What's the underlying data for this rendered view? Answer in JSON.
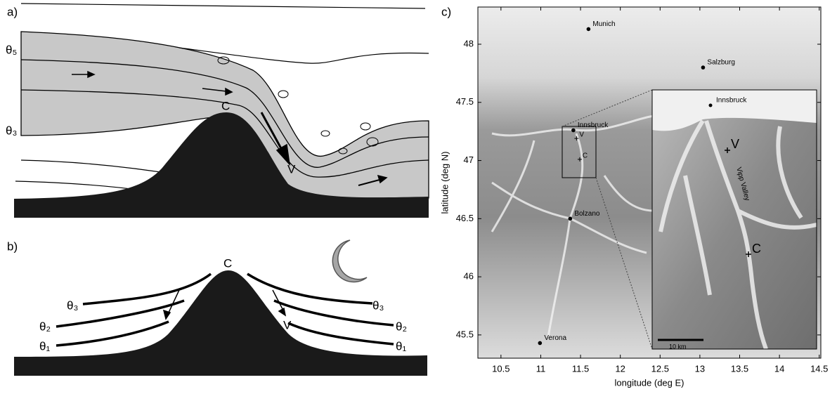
{
  "panel_a": {
    "label": "a)",
    "theta_top": "θ₅",
    "theta_bottom": "θ₃",
    "crest": "C",
    "valley": "V"
  },
  "panel_b": {
    "label": "b)",
    "crest": "C",
    "valley": "V",
    "left_thetas": [
      "θ₃",
      "θ₂",
      "θ₁"
    ],
    "right_thetas": [
      "θ₃",
      "θ₂",
      "θ₁"
    ]
  },
  "panel_c": {
    "label": "c)",
    "xlabel": "longitude (deg E)",
    "ylabel": "latitude (deg N)",
    "xlim": [
      10.21,
      14.52
    ],
    "ylim": [
      45.3,
      48.32
    ],
    "xticks": [
      10.5,
      11,
      11.5,
      12,
      12.5,
      13,
      13.5,
      14,
      14.5
    ],
    "yticks": [
      45.5,
      46,
      46.5,
      47,
      47.5,
      48
    ],
    "places": [
      {
        "name": "Munich",
        "lon": 11.6,
        "lat": 48.13
      },
      {
        "name": "Salzburg",
        "lon": 13.04,
        "lat": 47.8
      },
      {
        "name": "Innsbruck",
        "lon": 11.41,
        "lat": 47.26
      },
      {
        "name": "Bolzano",
        "lon": 11.37,
        "lat": 46.5
      },
      {
        "name": "Verona",
        "lon": 10.99,
        "lat": 45.43
      }
    ],
    "sites": [
      {
        "name": "V",
        "lon": 11.45,
        "lat": 47.19
      },
      {
        "name": "C",
        "lon": 11.49,
        "lat": 47.01
      }
    ],
    "inset": {
      "city": "Innsbruck",
      "site_v": "V",
      "site_c": "C",
      "valley": "Vipp Valley",
      "scale": "10 km"
    }
  }
}
